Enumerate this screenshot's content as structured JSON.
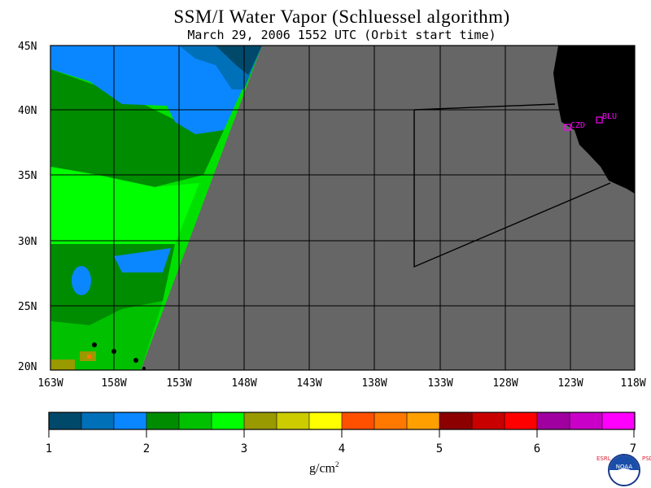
{
  "title": "SSM/I Water Vapor (Schluessel algorithm)",
  "subtitle": "March 29, 2006  1552 UTC  (Orbit start time)",
  "lat_labels": [
    "45N",
    "40N",
    "35N",
    "30N",
    "25N",
    "20N"
  ],
  "lon_labels": [
    "163W",
    "158W",
    "153W",
    "148W",
    "143W",
    "138W",
    "133W",
    "128W",
    "123W",
    "118W"
  ],
  "stations": [
    {
      "id": "CZD",
      "label": "CZD"
    },
    {
      "id": "BLU",
      "label": "BLU"
    }
  ],
  "colorbar": {
    "ticks": [
      "1",
      "2",
      "3",
      "4",
      "5",
      "6",
      "7"
    ],
    "units": "g/cm",
    "units_sup": "2",
    "colors": [
      "#00496a",
      "#0070b8",
      "#0a87ff",
      "#008c00",
      "#00c000",
      "#00ff00",
      "#999900",
      "#cccc00",
      "#ffff00",
      "#ff5000",
      "#ff7800",
      "#ffa000",
      "#8c0000",
      "#c80000",
      "#ff0000",
      "#a000a0",
      "#c800c8",
      "#ff00ff"
    ]
  },
  "logo": {
    "text": "NOAA",
    "left_text": "ESRL",
    "right_text": "PSD"
  },
  "colors": {
    "land": "#000000",
    "no_data": "#666666",
    "grid": "#000000",
    "station": "#ff00ff"
  }
}
